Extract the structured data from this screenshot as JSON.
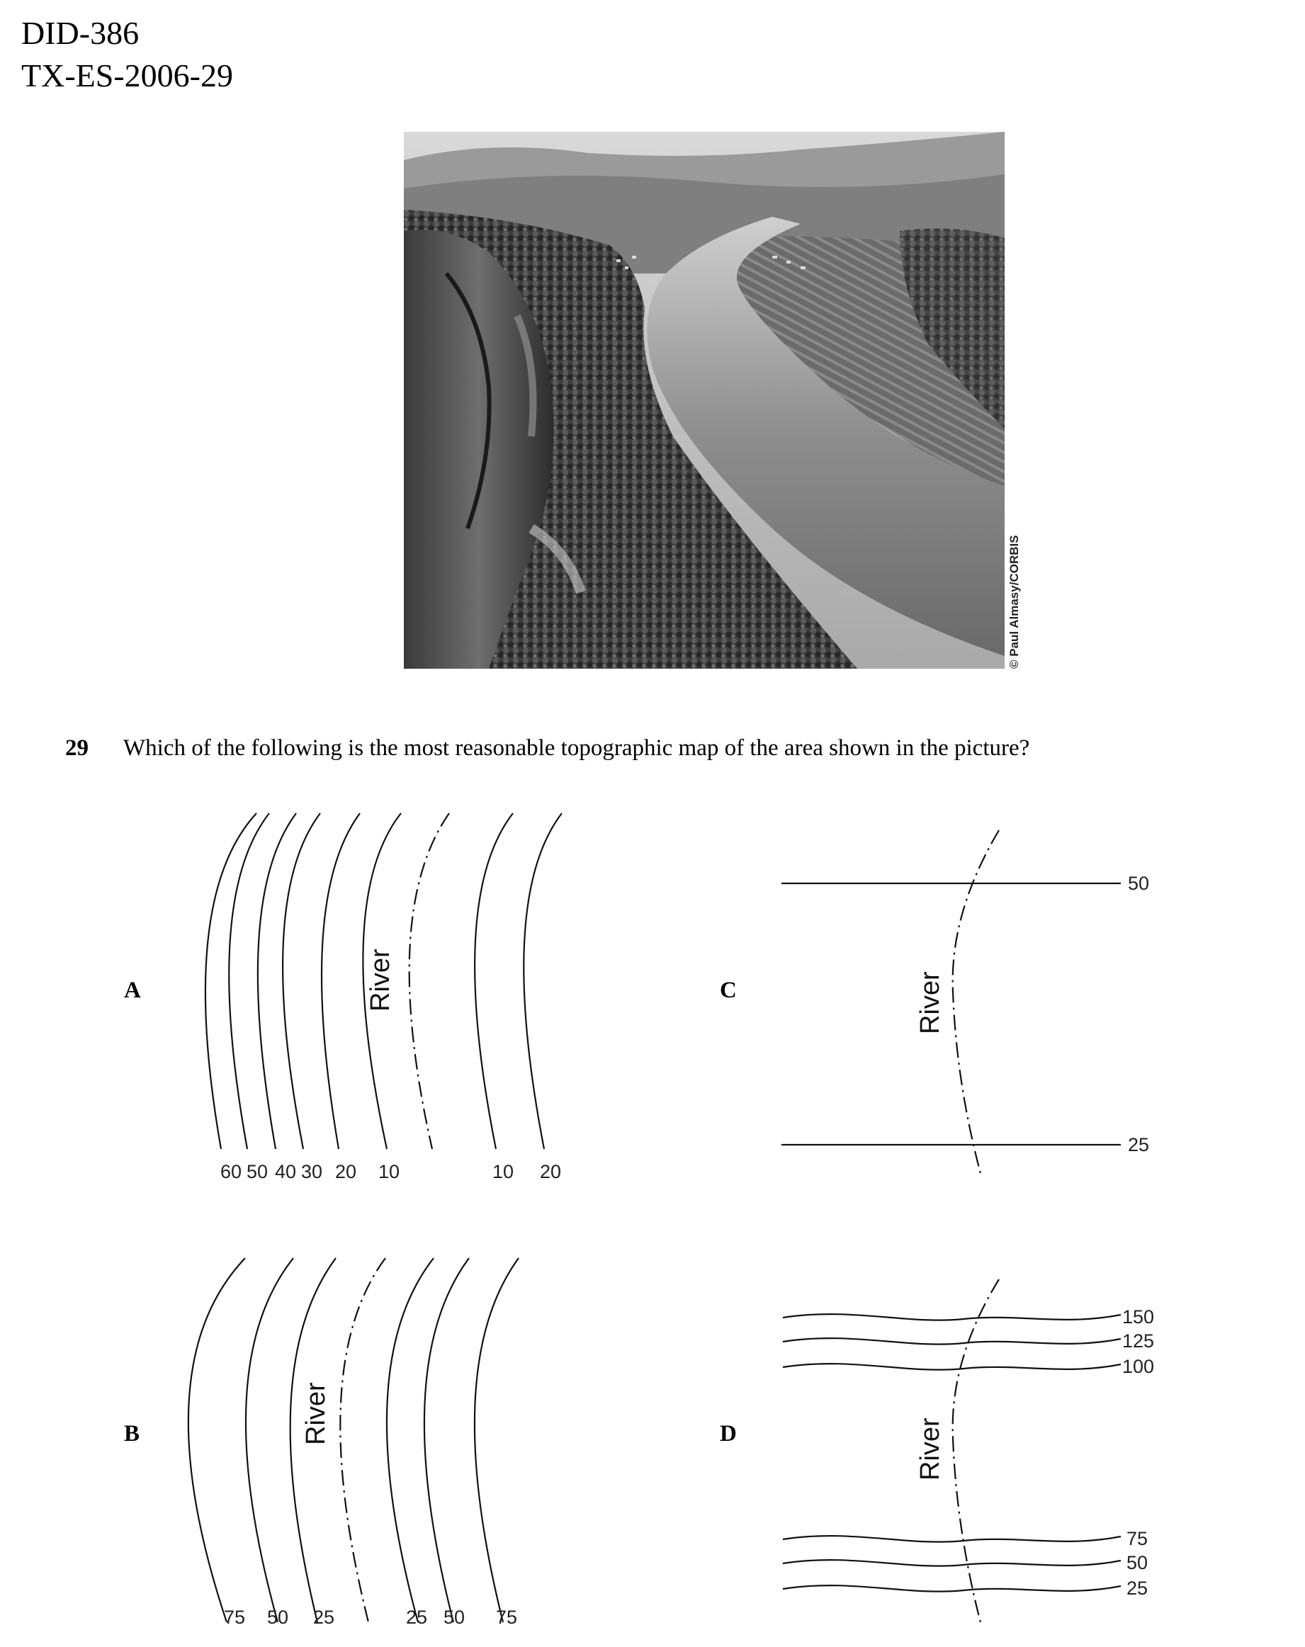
{
  "header": {
    "doc_id": "DID-386",
    "item_code": "TX-ES-2006-29"
  },
  "photo": {
    "credit": "© Paul Almasy/CORBIS"
  },
  "question": {
    "number": "29",
    "text": "Which of the following is the most reasonable topographic map of the area shown in the picture?"
  },
  "options": {
    "A": {
      "letter": "A",
      "river_label": "River",
      "contour_labels": [
        "60",
        "50",
        "40",
        "30",
        "20",
        "10",
        "10",
        "20"
      ]
    },
    "B": {
      "letter": "B",
      "river_label": "River",
      "contour_labels": [
        "75",
        "50",
        "25",
        "25",
        "50",
        "75"
      ]
    },
    "C": {
      "letter": "C",
      "river_label": "River",
      "contour_labels": [
        "50",
        "25"
      ]
    },
    "D": {
      "letter": "D",
      "river_label": "River",
      "contour_labels": [
        "150",
        "125",
        "100",
        "75",
        "50",
        "25"
      ]
    }
  },
  "colors": {
    "ink": "#111111",
    "paper": "#ffffff"
  }
}
